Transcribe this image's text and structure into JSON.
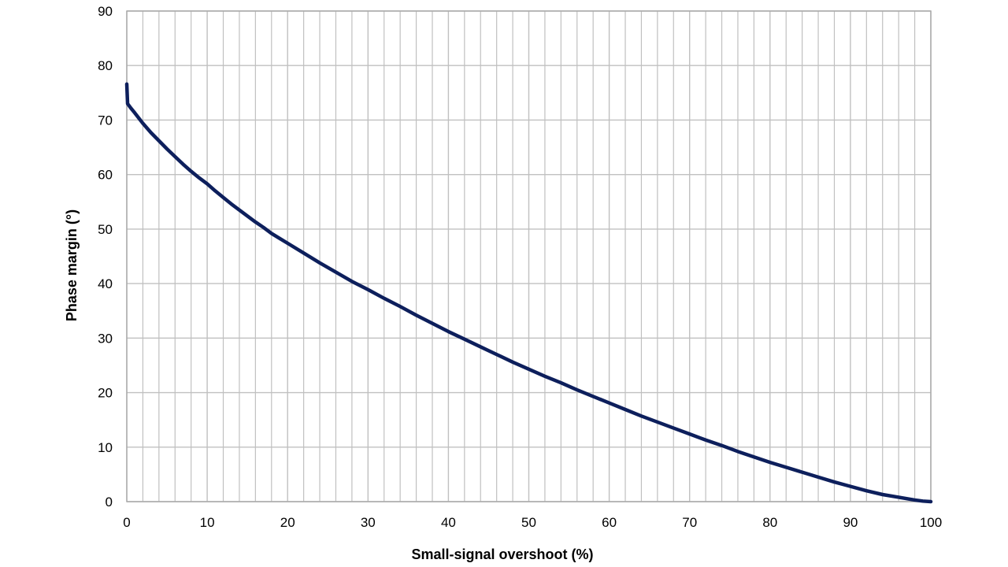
{
  "chart_data": {
    "type": "line",
    "title": "",
    "xlabel": "Small-signal overshoot (%)",
    "ylabel": "Phase margin (°)",
    "xlim": [
      0,
      100
    ],
    "ylim": [
      0,
      90
    ],
    "x_major_ticks": [
      0,
      10,
      20,
      30,
      40,
      50,
      60,
      70,
      80,
      90,
      100
    ],
    "y_major_ticks": [
      0,
      10,
      20,
      30,
      40,
      50,
      60,
      70,
      80,
      90
    ],
    "x_minor_step": 2,
    "grid": true,
    "legend": "none",
    "line_color": "#0d1f5c",
    "grid_color": "#c0c0c0",
    "series": [
      {
        "values_x": [
          0,
          0.1,
          0.5,
          1,
          2,
          3,
          4,
          5,
          6,
          7,
          8,
          9,
          10,
          11,
          12,
          13,
          14,
          15,
          16,
          17,
          18,
          19,
          20,
          22,
          24,
          26,
          28,
          30,
          32,
          34,
          36,
          38,
          40,
          42,
          44,
          46,
          48,
          50,
          52,
          54,
          56,
          58,
          60,
          62,
          64,
          66,
          68,
          70,
          72,
          74,
          76,
          78,
          80,
          82,
          84,
          86,
          88,
          90,
          92,
          94,
          96,
          98,
          99,
          100
        ],
        "values_y": [
          76.6,
          73.0,
          72.2,
          71.3,
          69.4,
          67.7,
          66.2,
          64.7,
          63.3,
          61.9,
          60.6,
          59.4,
          58.3,
          57.0,
          55.8,
          54.6,
          53.5,
          52.4,
          51.3,
          50.3,
          49.2,
          48.3,
          47.4,
          45.6,
          43.8,
          42.1,
          40.4,
          38.9,
          37.3,
          35.8,
          34.2,
          32.7,
          31.2,
          29.8,
          28.4,
          27.0,
          25.6,
          24.3,
          23.0,
          21.8,
          20.5,
          19.3,
          18.1,
          16.9,
          15.7,
          14.6,
          13.5,
          12.4,
          11.3,
          10.3,
          9.2,
          8.2,
          7.2,
          6.3,
          5.4,
          4.5,
          3.6,
          2.8,
          2.0,
          1.3,
          0.8,
          0.3,
          0.1,
          0.0
        ]
      }
    ]
  }
}
